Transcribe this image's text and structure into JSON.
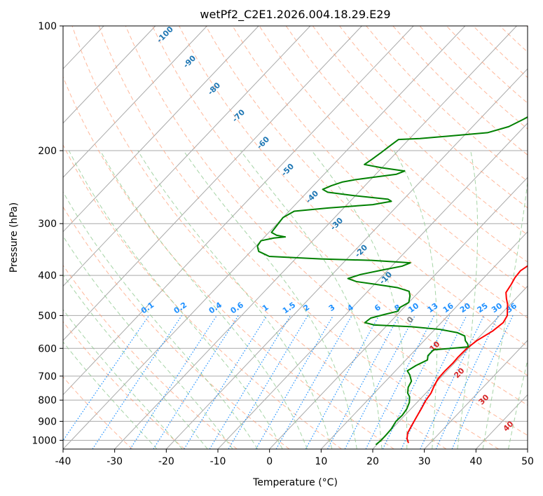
{
  "chart_data": {
    "type": "line",
    "title": "wetPf2_C2E1.2026.004.18.29.E29",
    "xlabel": "Temperature (°C)",
    "ylabel": "Pressure (hPa)",
    "xlim": [
      -40,
      50
    ],
    "ylim": [
      1050,
      100
    ],
    "y_scale": "log",
    "grid": true,
    "x_ticks": [
      -40,
      -30,
      -20,
      -10,
      0,
      10,
      20,
      30,
      40,
      50
    ],
    "y_ticks": [
      100,
      200,
      300,
      400,
      500,
      600,
      700,
      800,
      900,
      1000
    ],
    "series": [
      {
        "color": "#ff0000",
        "points": [
          [
            2.5,
            100
          ],
          [
            2.0,
            110
          ],
          [
            1.8,
            120
          ],
          [
            2.0,
            135
          ],
          [
            2.6,
            150
          ],
          [
            4.0,
            170
          ],
          [
            5.5,
            190
          ],
          [
            6.5,
            210
          ],
          [
            7.3,
            230
          ],
          [
            8.3,
            250
          ],
          [
            9.3,
            270
          ],
          [
            10.3,
            285
          ],
          [
            11.3,
            300
          ],
          [
            12.2,
            315
          ],
          [
            14.0,
            330
          ],
          [
            16.5,
            345
          ],
          [
            18.0,
            355
          ],
          [
            17.5,
            365
          ],
          [
            16.5,
            375
          ],
          [
            15.8,
            390
          ],
          [
            16.0,
            405
          ],
          [
            16.5,
            420
          ],
          [
            17.0,
            440
          ],
          [
            18.2,
            455
          ],
          [
            19.5,
            470
          ],
          [
            20.5,
            485
          ],
          [
            21.5,
            500
          ],
          [
            22.0,
            520
          ],
          [
            21.5,
            545
          ],
          [
            20.2,
            575
          ],
          [
            19.7,
            600
          ],
          [
            19.6,
            630
          ],
          [
            19.7,
            650
          ],
          [
            19.6,
            680
          ],
          [
            19.7,
            710
          ],
          [
            20.3,
            740
          ],
          [
            21.0,
            770
          ],
          [
            21.3,
            800
          ],
          [
            22.0,
            840
          ],
          [
            22.6,
            880
          ],
          [
            23.2,
            920
          ],
          [
            23.8,
            960
          ],
          [
            24.7,
            990
          ],
          [
            25.8,
            1015
          ]
        ]
      },
      {
        "color": "#008000",
        "points": [
          [
            0.0,
            100
          ],
          [
            -1.5,
            104
          ],
          [
            -2.7,
            110
          ],
          [
            -4.5,
            120
          ],
          [
            -5.5,
            130
          ],
          [
            -7.2,
            140
          ],
          [
            -8.5,
            150
          ],
          [
            -10.0,
            160
          ],
          [
            -11.5,
            168
          ],
          [
            -13.0,
            175
          ],
          [
            -16.0,
            181
          ],
          [
            -22.0,
            184
          ],
          [
            -28.0,
            187
          ],
          [
            -32.0,
            188
          ],
          [
            -32.5,
            195
          ],
          [
            -33.0,
            203
          ],
          [
            -33.5,
            210
          ],
          [
            -34.0,
            216
          ],
          [
            -30.0,
            220
          ],
          [
            -25.0,
            224
          ],
          [
            -26.0,
            228
          ],
          [
            -30.0,
            232
          ],
          [
            -33.0,
            235
          ],
          [
            -35.0,
            238
          ],
          [
            -36.5,
            243
          ],
          [
            -37.5,
            248
          ],
          [
            -36.0,
            252
          ],
          [
            -30.0,
            257
          ],
          [
            -23.0,
            262
          ],
          [
            -22.0,
            265
          ],
          [
            -25.0,
            270
          ],
          [
            -33.0,
            275
          ],
          [
            -39.0,
            280
          ],
          [
            -40.0,
            290
          ],
          [
            -39.7,
            305
          ],
          [
            -39.5,
            315
          ],
          [
            -38.0,
            320
          ],
          [
            -36.0,
            323
          ],
          [
            -38.0,
            325
          ],
          [
            -40.0,
            330
          ],
          [
            -39.7,
            340
          ],
          [
            -38.5,
            350
          ],
          [
            -35.5,
            360
          ],
          [
            -25.0,
            365
          ],
          [
            -15.0,
            368
          ],
          [
            -7.0,
            373
          ],
          [
            -8.0,
            380
          ],
          [
            -11.0,
            388
          ],
          [
            -14.5,
            398
          ],
          [
            -16.2,
            407
          ],
          [
            -14.0,
            414
          ],
          [
            -10.0,
            420
          ],
          [
            -5.0,
            428
          ],
          [
            -2.0,
            437
          ],
          [
            -1.0,
            448
          ],
          [
            0.0,
            465
          ],
          [
            -0.8,
            478
          ],
          [
            -0.5,
            488
          ],
          [
            -2.5,
            497
          ],
          [
            -4.5,
            507
          ],
          [
            -4.8,
            520
          ],
          [
            -2.5,
            527
          ],
          [
            5.0,
            532
          ],
          [
            11.0,
            540
          ],
          [
            15.0,
            550
          ],
          [
            17.0,
            560
          ],
          [
            18.0,
            575
          ],
          [
            19.0,
            585
          ],
          [
            19.7,
            595
          ],
          [
            13.5,
            605
          ],
          [
            13.5,
            625
          ],
          [
            14.2,
            640
          ],
          [
            13.0,
            660
          ],
          [
            12.3,
            680
          ],
          [
            13.5,
            695
          ],
          [
            15.0,
            720
          ],
          [
            15.5,
            745
          ],
          [
            16.5,
            770
          ],
          [
            17.5,
            785
          ],
          [
            18.5,
            810
          ],
          [
            19.2,
            840
          ],
          [
            19.5,
            870
          ],
          [
            19.4,
            900
          ],
          [
            19.9,
            940
          ],
          [
            20.0,
            975
          ],
          [
            20.0,
            1000
          ],
          [
            19.8,
            1025
          ]
        ]
      }
    ],
    "dry_adiabat_labels": [
      "-100",
      "-90",
      "-80",
      "-70",
      "-60",
      "-50",
      "-40",
      "-30",
      "-20",
      "-10",
      "0",
      "10",
      "20",
      "30",
      "40"
    ],
    "mixing_ratio_labels": [
      "0.1",
      "0.2",
      "0.4",
      "0.6",
      "1",
      "1.5",
      "2",
      "3",
      "4",
      "6",
      "8",
      "10",
      "13",
      "16",
      "20",
      "25",
      "30",
      "36"
    ],
    "colors": {
      "isotherm": "#a9a9a9",
      "dry_adiabat": "#ffa07a",
      "moist_adiabat": "#90c990",
      "mixing_ratio": "#1e90ff",
      "dry_adiabat_label_cold": "#1f77b4",
      "dry_adiabat_label_warm": "#d62728",
      "dry_adiabat_label_zero": "#7f7f7f"
    }
  }
}
